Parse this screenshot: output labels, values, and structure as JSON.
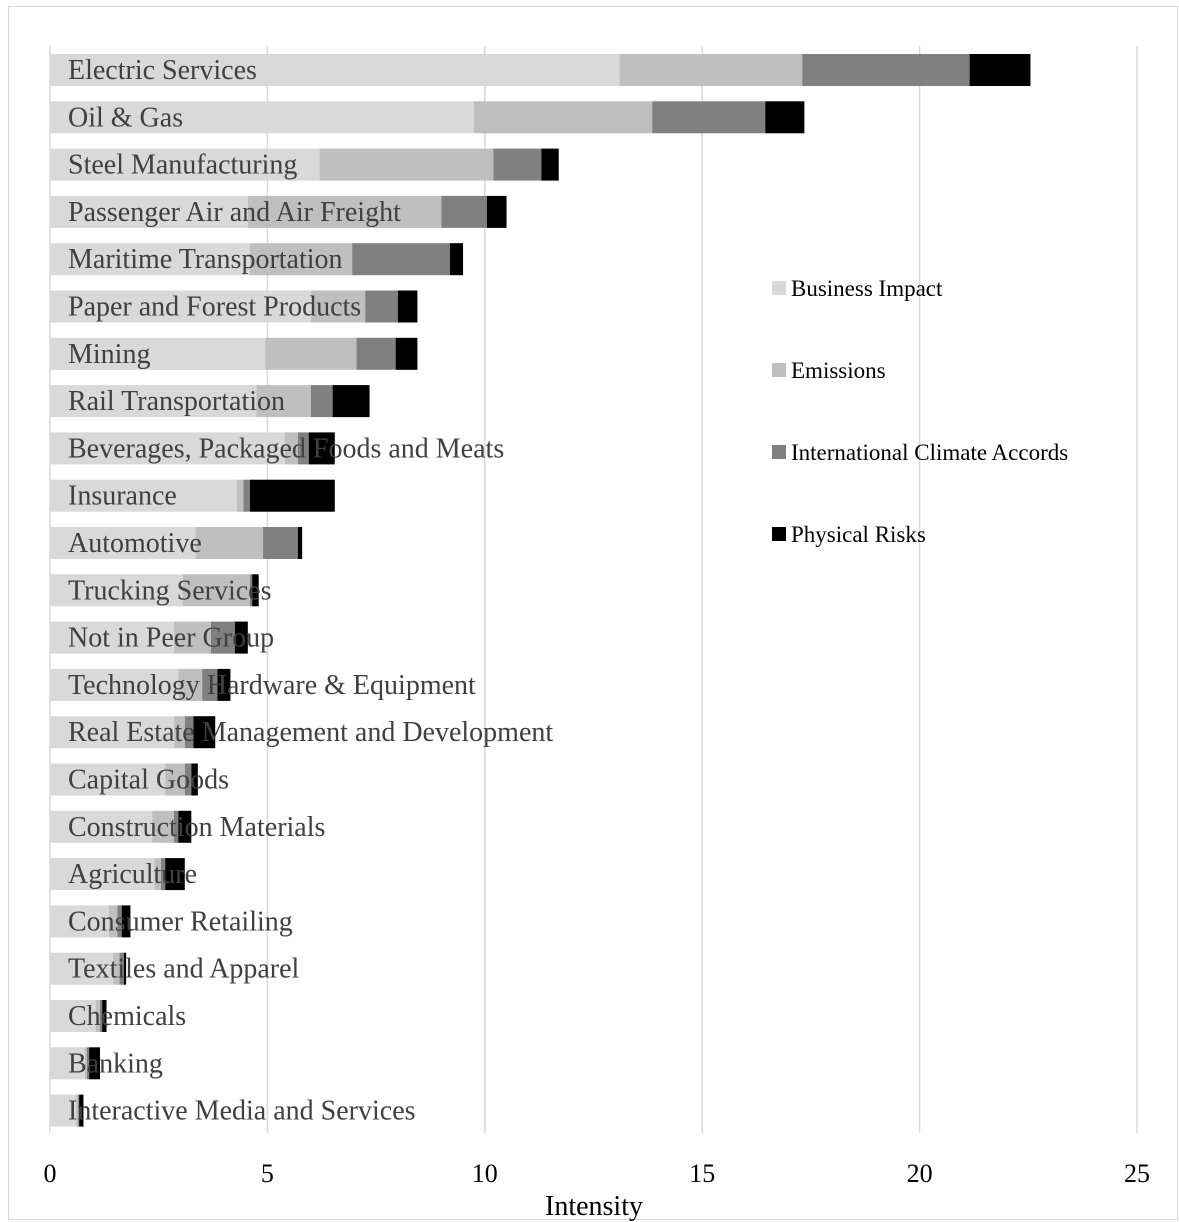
{
  "chart_data": {
    "type": "bar",
    "orientation": "horizontal",
    "stacked": true,
    "title": "",
    "xlabel": "Intensity",
    "ylabel": "",
    "xlim": [
      0,
      25
    ],
    "x_ticks": [
      0,
      5,
      10,
      15,
      20,
      25
    ],
    "grid": "vertical",
    "legend_position": "right",
    "categories": [
      "Electric Services",
      "Oil & Gas",
      "Steel Manufacturing",
      "Passenger Air and Air Freight",
      "Maritime Transportation",
      "Paper and Forest Products",
      "Mining",
      "Rail Transportation",
      "Beverages, Packaged Foods and Meats",
      "Insurance",
      "Automotive",
      "Trucking Services",
      "Not in Peer Group",
      "Technology Hardware & Equipment",
      "Real Estate Management and Development",
      "Capital Goods",
      "Construction Materials",
      "Agriculture",
      "Consumer Retailing",
      "Textiles and Apparel",
      "Chemicals",
      "Banking",
      "Interactive Media and Services"
    ],
    "series": [
      {
        "name": "Business Impact",
        "color": "#d9d9d9",
        "values": [
          13.1,
          9.75,
          6.2,
          4.55,
          4.6,
          6.0,
          4.95,
          4.75,
          5.4,
          4.3,
          3.35,
          3.05,
          2.85,
          2.95,
          2.85,
          2.65,
          2.35,
          2.4,
          1.35,
          1.45,
          1.05,
          0.8,
          0.6
        ]
      },
      {
        "name": "Emissions",
        "color": "#bfbfbf",
        "values": [
          4.2,
          4.1,
          4.0,
          4.45,
          2.35,
          1.25,
          2.1,
          1.25,
          0.3,
          0.15,
          1.55,
          1.55,
          0.85,
          0.55,
          0.25,
          0.45,
          0.5,
          0.15,
          0.2,
          0.15,
          0.1,
          0.05,
          0.05
        ]
      },
      {
        "name": "International Climate Accords",
        "color": "#808080",
        "values": [
          3.85,
          2.6,
          1.1,
          1.05,
          2.25,
          0.75,
          0.9,
          0.5,
          0.25,
          0.15,
          0.8,
          0.05,
          0.55,
          0.35,
          0.2,
          0.15,
          0.1,
          0.1,
          0.1,
          0.1,
          0.05,
          0.05,
          0.02
        ]
      },
      {
        "name": "Physical Risks",
        "color": "#000000",
        "values": [
          1.4,
          0.9,
          0.4,
          0.45,
          0.3,
          0.45,
          0.5,
          0.85,
          0.6,
          1.95,
          0.1,
          0.15,
          0.3,
          0.3,
          0.5,
          0.15,
          0.3,
          0.45,
          0.2,
          0.05,
          0.1,
          0.25,
          0.1
        ]
      }
    ]
  }
}
